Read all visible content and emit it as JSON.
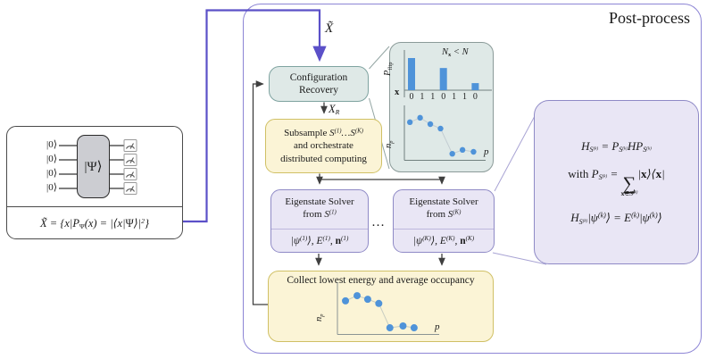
{
  "post_process": {
    "title": "Post-process"
  },
  "colors": {
    "connector_purple": "#5b50c8",
    "arrow_dark": "#3f3f3f",
    "data_blue": "#4f93d9",
    "teal_fill": "#dfe9e7",
    "teal_border": "#7fa3a0",
    "yellow_fill": "#fbf4d6",
    "yellow_border": "#d0c065",
    "purple_fill": "#e9e6f5",
    "purple_border": "#8f8ac6",
    "panel_border": "#8d85d5"
  },
  "circuit": {
    "qubits": [
      "|0⟩",
      "|0⟩",
      "|0⟩",
      "|0⟩"
    ],
    "gate": "|Ψ⟩",
    "formula": "X̃ = {x|P_{#Ψ#}(x) = |⟨x|#Ψ#⟩|^{2}}"
  },
  "labels": {
    "x_tilde": "X̃",
    "x_r": "X_{R}",
    "ellipsis": "…"
  },
  "config_recovery": {
    "line1": "Configuration",
    "line2": "Recovery"
  },
  "subsample": {
    "prefix": "Subsample ",
    "s_range": "S^{(1)}…S^{(K)}",
    "line2": "and orchestrate",
    "line3": "distributed computing"
  },
  "solvers": [
    {
      "title": "Eigenstate Solver",
      "from_prefix": "from ",
      "from_math": "S^{(1)}",
      "output": "|ψ^{(1)}⟩, E^{(1)}, *n*^{(1)}"
    },
    {
      "title": "Eigenstate Solver",
      "from_prefix": "from ",
      "from_math": "S^{(K)}",
      "output": "|ψ^{(K)}⟩, E^{(K)}, *n*^{(K)}"
    }
  ],
  "collect": {
    "title": "Collect lowest energy and average occupancy"
  },
  "equations": {
    "line1": "H_{S^{(k)}} = P_{S^{(k)}}HP_{S^{(k)}}",
    "line2_prefix": "with ",
    "line2_math": "P_{S^{(k)}} = ∑_{*x*∈S^{(k)}}|*x*⟩⟨*x*|",
    "line3": "H_{S^{(k)}}|ψ^{(k)}⟩ = E^{(k)}|ψ^{(k)}⟩"
  },
  "chart_data": [
    {
      "type": "bar",
      "ylabel": "P_{#flip#}",
      "annotation": "N_{*x*} < N",
      "row_label": "*x*",
      "categories": [
        "0",
        "1",
        "1",
        "0",
        "1",
        "1",
        "0"
      ],
      "values": [
        1.0,
        0,
        0,
        0.69,
        0,
        0,
        0.22
      ],
      "ylim": [
        0,
        1
      ],
      "color": "#4f93d9"
    },
    {
      "type": "scatter",
      "ylabel": "n_{p}",
      "xlabel": "p",
      "points": [
        [
          0.07,
          0.68
        ],
        [
          0.2,
          0.76
        ],
        [
          0.33,
          0.645
        ],
        [
          0.46,
          0.565
        ],
        [
          0.61,
          0.11
        ],
        [
          0.74,
          0.18
        ],
        [
          0.88,
          0.145
        ]
      ],
      "color": "#4f93d9"
    },
    {
      "type": "scatter",
      "ylabel": "n_{p}",
      "xlabel": "p",
      "points": [
        [
          0.08,
          0.64
        ],
        [
          0.195,
          0.74
        ],
        [
          0.3,
          0.67
        ],
        [
          0.41,
          0.59
        ],
        [
          0.52,
          0.12
        ],
        [
          0.65,
          0.155
        ],
        [
          0.76,
          0.12
        ]
      ],
      "color": "#4f93d9"
    }
  ]
}
